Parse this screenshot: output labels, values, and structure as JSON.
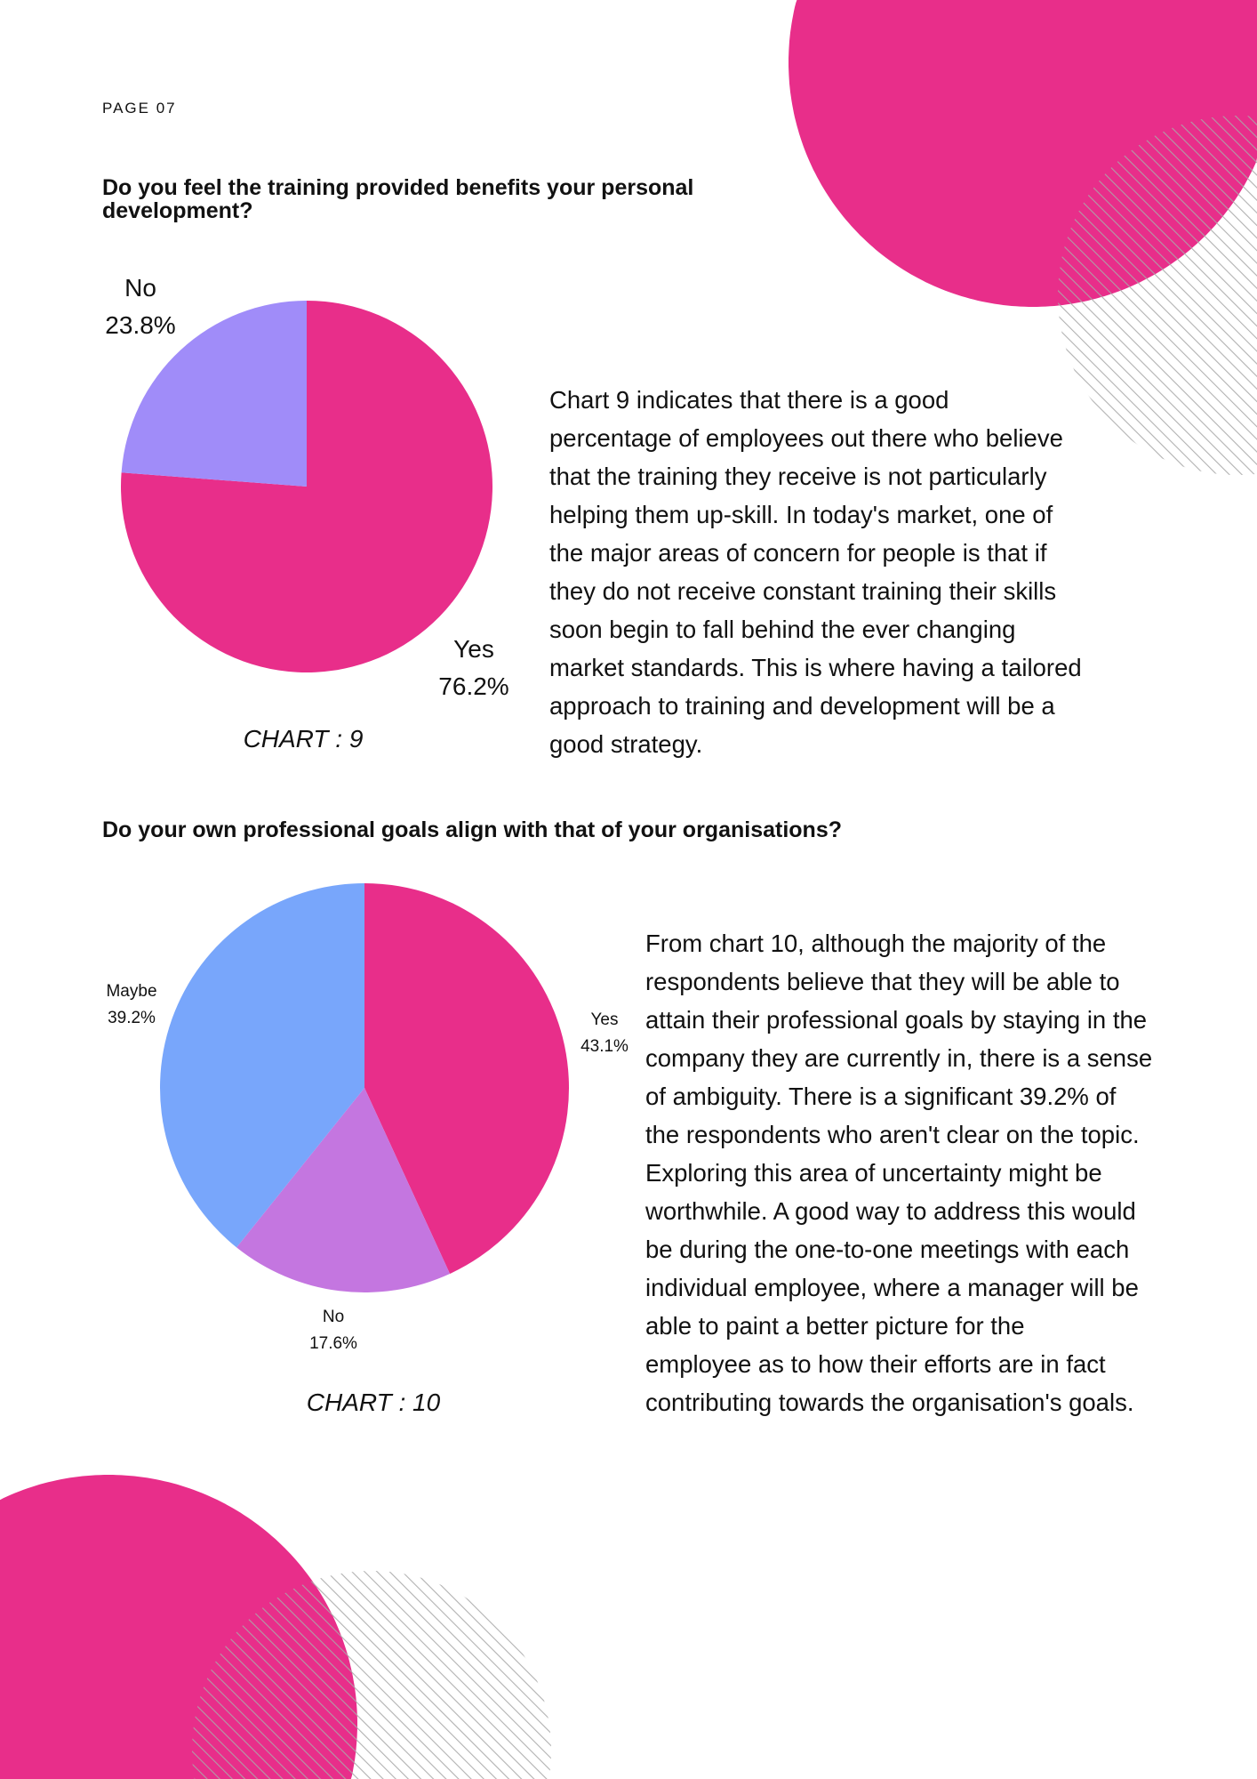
{
  "page_label": "PAGE 07",
  "colors": {
    "accent": "#E82E8A",
    "hatch": "#A9A9A9"
  },
  "sections": [
    {
      "question": "Do you feel the training provided benefits your personal development?",
      "caption": "CHART : 9",
      "paragraph_lines": [
        "Chart 9 indicates that there is a good",
        "percentage of employees out there who believe",
        "that the training they receive is not particularly",
        "helping them up-skill. In today's market, one of",
        "the major areas of concern for people is that if",
        "they do not receive constant training their skills",
        "soon begin to fall behind the ever changing",
        "market standards. This is where having a tailored",
        "approach to training and development will be a",
        "good strategy."
      ]
    },
    {
      "question": "Do your own professional goals align with that of your organisations?",
      "caption": "CHART : 10",
      "paragraph_lines": [
        "From chart 10, although the majority of the",
        "respondents believe that they will be able to",
        "attain their professional goals by staying in the",
        "company they are currently in, there is a sense",
        "of ambiguity. There is a significant 39.2% of",
        "the respondents who aren't clear on the topic.",
        "Exploring this area of uncertainty might be",
        "worthwhile. A good way to address this would",
        "be during the one-to-one meetings with each",
        "individual employee, where a manager will be",
        "able to paint a better picture for the",
        "employee as to how their efforts are in fact",
        "contributing towards the organisation's goals."
      ]
    }
  ],
  "chart_data": [
    {
      "type": "pie",
      "title": "",
      "categories": [
        "Yes",
        "No"
      ],
      "values": [
        76.2,
        23.8
      ],
      "labels": [
        "76.2%",
        "23.8%"
      ],
      "colors": [
        "#E82E8A",
        "#A08CF9"
      ]
    },
    {
      "type": "pie",
      "title": "",
      "categories": [
        "Yes",
        "No",
        "Maybe"
      ],
      "values": [
        43.1,
        17.6,
        39.2
      ],
      "labels": [
        "43.1%",
        "17.6%",
        "39.2%"
      ],
      "colors": [
        "#E82E8A",
        "#C476E0",
        "#78A6FB"
      ]
    }
  ]
}
